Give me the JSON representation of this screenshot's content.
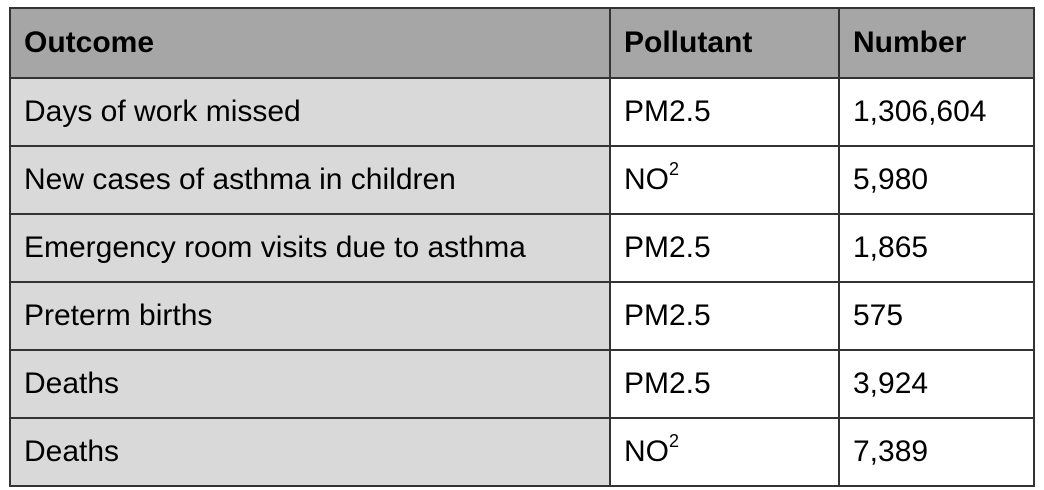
{
  "table": {
    "headers": [
      "Outcome",
      "Pollutant",
      "Number"
    ],
    "rows": [
      {
        "outcome": "Days of work missed",
        "pollutant": "PM2.5",
        "pollutant_sup": "",
        "number": "1,306,604"
      },
      {
        "outcome": "New cases of asthma in children",
        "pollutant": "NO",
        "pollutant_sup": "2",
        "number": "5,980"
      },
      {
        "outcome": "Emergency room visits due to asthma",
        "pollutant": "PM2.5",
        "pollutant_sup": "",
        "number": "1,865"
      },
      {
        "outcome": "Preterm births",
        "pollutant": "PM2.5",
        "pollutant_sup": "",
        "number": "575"
      },
      {
        "outcome": "Deaths",
        "pollutant": "PM2.5",
        "pollutant_sup": "",
        "number": "3,924"
      },
      {
        "outcome": "Deaths",
        "pollutant": "NO",
        "pollutant_sup": "2",
        "number": "7,389"
      }
    ]
  },
  "colors": {
    "header_bg": "#a6a6a6",
    "outcome_bg": "#d9d9d9",
    "cell_bg": "#ffffff",
    "border": "#333333"
  }
}
